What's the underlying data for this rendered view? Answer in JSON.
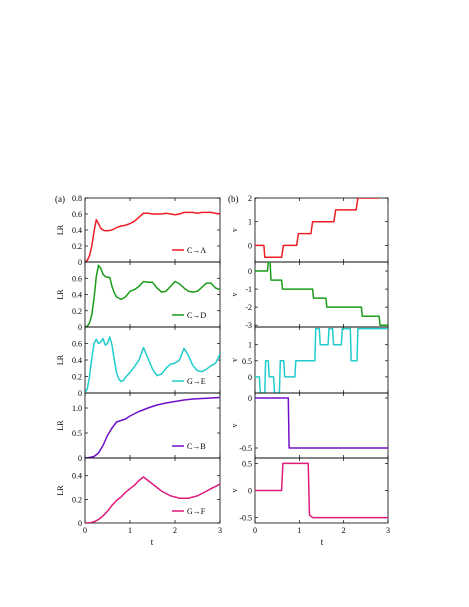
{
  "figure": {
    "panel_labels": [
      "(a)",
      "(b)"
    ],
    "x_label": "t"
  },
  "chart_data": [
    {
      "type": "line",
      "panel": "a",
      "row": 0,
      "ylabel": "LR",
      "ylim": [
        0,
        0.8
      ],
      "yticks": [
        0,
        0.2,
        0.4,
        0.6,
        0.8
      ],
      "ytick_labels": [
        "0",
        "0.2",
        "0.4",
        "0.6",
        "0.8"
      ],
      "xlim": [
        0,
        3
      ],
      "series": [
        {
          "name": "C→A",
          "color": "#ee1c25",
          "x": [
            0,
            0.05,
            0.1,
            0.15,
            0.2,
            0.25,
            0.3,
            0.35,
            0.4,
            0.45,
            0.5,
            0.6,
            0.7,
            0.8,
            0.9,
            1.0,
            1.1,
            1.2,
            1.3,
            1.4,
            1.5,
            1.6,
            1.7,
            1.8,
            1.9,
            2.0,
            2.1,
            2.2,
            2.3,
            2.4,
            2.5,
            2.6,
            2.7,
            2.8,
            2.9,
            3.0
          ],
          "y": [
            0,
            0.02,
            0.08,
            0.2,
            0.38,
            0.53,
            0.48,
            0.42,
            0.4,
            0.39,
            0.39,
            0.4,
            0.43,
            0.45,
            0.46,
            0.48,
            0.51,
            0.56,
            0.61,
            0.61,
            0.6,
            0.6,
            0.6,
            0.61,
            0.6,
            0.59,
            0.6,
            0.62,
            0.62,
            0.62,
            0.61,
            0.62,
            0.62,
            0.62,
            0.61,
            0.6
          ]
        }
      ]
    },
    {
      "type": "line",
      "panel": "a",
      "row": 1,
      "ylabel": "LR",
      "ylim": [
        0,
        0.8
      ],
      "yticks": [
        0,
        0.2,
        0.4,
        0.6
      ],
      "ytick_labels": [
        "0",
        "0.2",
        "0.4",
        "0.6"
      ],
      "xlim": [
        0,
        3
      ],
      "series": [
        {
          "name": "C→D",
          "color": "#1a9c1a",
          "x": [
            0,
            0.05,
            0.1,
            0.15,
            0.2,
            0.25,
            0.3,
            0.35,
            0.4,
            0.45,
            0.5,
            0.55,
            0.6,
            0.65,
            0.7,
            0.8,
            0.9,
            1.0,
            1.1,
            1.2,
            1.3,
            1.4,
            1.5,
            1.6,
            1.7,
            1.8,
            1.9,
            2.0,
            2.1,
            2.2,
            2.3,
            2.4,
            2.5,
            2.6,
            2.7,
            2.8,
            2.9,
            3.0
          ],
          "y": [
            0,
            0.01,
            0.05,
            0.15,
            0.35,
            0.62,
            0.76,
            0.72,
            0.65,
            0.62,
            0.61,
            0.61,
            0.5,
            0.42,
            0.37,
            0.34,
            0.37,
            0.44,
            0.46,
            0.5,
            0.56,
            0.55,
            0.55,
            0.48,
            0.43,
            0.44,
            0.5,
            0.56,
            0.53,
            0.48,
            0.44,
            0.43,
            0.44,
            0.49,
            0.54,
            0.54,
            0.48,
            0.46
          ]
        }
      ]
    },
    {
      "type": "line",
      "panel": "a",
      "row": 2,
      "ylabel": "LR",
      "ylim": [
        0,
        0.8
      ],
      "yticks": [
        0,
        0.2,
        0.4,
        0.6
      ],
      "ytick_labels": [
        "0",
        "0.2",
        "0.4",
        "0.6"
      ],
      "xlim": [
        0,
        3
      ],
      "series": [
        {
          "name": "G→E",
          "color": "#22cccc",
          "x": [
            0,
            0.05,
            0.1,
            0.15,
            0.2,
            0.25,
            0.3,
            0.35,
            0.4,
            0.45,
            0.5,
            0.55,
            0.6,
            0.65,
            0.7,
            0.75,
            0.8,
            0.85,
            0.9,
            1.0,
            1.1,
            1.2,
            1.3,
            1.4,
            1.5,
            1.6,
            1.7,
            1.8,
            1.9,
            2.0,
            2.1,
            2.2,
            2.25,
            2.3,
            2.4,
            2.5,
            2.6,
            2.7,
            2.8,
            2.9,
            3.0
          ],
          "y": [
            0,
            0.05,
            0.2,
            0.42,
            0.6,
            0.65,
            0.6,
            0.62,
            0.66,
            0.58,
            0.6,
            0.68,
            0.58,
            0.4,
            0.25,
            0.17,
            0.14,
            0.15,
            0.19,
            0.25,
            0.32,
            0.4,
            0.55,
            0.42,
            0.29,
            0.21,
            0.23,
            0.3,
            0.35,
            0.36,
            0.4,
            0.54,
            0.5,
            0.45,
            0.33,
            0.27,
            0.26,
            0.29,
            0.33,
            0.36,
            0.47
          ]
        }
      ]
    },
    {
      "type": "line",
      "panel": "a",
      "row": 3,
      "ylabel": "LR",
      "ylim": [
        0,
        1.3
      ],
      "yticks": [
        0,
        0.5,
        1.0
      ],
      "ytick_labels": [
        "0",
        "0.5",
        "1.0"
      ],
      "xlim": [
        0,
        3
      ],
      "series": [
        {
          "name": "C→B",
          "color": "#7010c8",
          "x": [
            0,
            0.1,
            0.2,
            0.3,
            0.4,
            0.5,
            0.6,
            0.7,
            0.8,
            0.9,
            1.0,
            1.2,
            1.4,
            1.6,
            1.8,
            2.0,
            2.2,
            2.4,
            2.6,
            2.8,
            3.0
          ],
          "y": [
            0,
            0.01,
            0.03,
            0.1,
            0.25,
            0.45,
            0.6,
            0.72,
            0.75,
            0.78,
            0.84,
            0.93,
            1.0,
            1.06,
            1.1,
            1.13,
            1.16,
            1.18,
            1.19,
            1.2,
            1.21
          ]
        }
      ]
    },
    {
      "type": "line",
      "panel": "a",
      "row": 4,
      "ylabel": "LR",
      "ylim": [
        0,
        0.55
      ],
      "yticks": [
        0,
        0.2,
        0.4
      ],
      "ytick_labels": [
        "0",
        "0.2",
        "0.4"
      ],
      "xlim": [
        0,
        3
      ],
      "xticks": [
        0,
        1,
        2,
        3
      ],
      "xtick_labels": [
        "0",
        "1",
        "2",
        "3"
      ],
      "series": [
        {
          "name": "G→F",
          "color": "#e0197a",
          "x": [
            0,
            0.1,
            0.2,
            0.3,
            0.4,
            0.5,
            0.6,
            0.7,
            0.8,
            0.9,
            1.0,
            1.1,
            1.2,
            1.3,
            1.4,
            1.5,
            1.6,
            1.7,
            1.8,
            1.9,
            2.0,
            2.1,
            2.2,
            2.3,
            2.4,
            2.5,
            2.6,
            2.7,
            2.8,
            2.9,
            3.0
          ],
          "y": [
            0,
            0.002,
            0.01,
            0.03,
            0.06,
            0.1,
            0.15,
            0.19,
            0.22,
            0.26,
            0.29,
            0.32,
            0.36,
            0.39,
            0.36,
            0.33,
            0.3,
            0.27,
            0.25,
            0.23,
            0.22,
            0.21,
            0.21,
            0.21,
            0.22,
            0.23,
            0.25,
            0.27,
            0.29,
            0.31,
            0.33
          ]
        }
      ]
    },
    {
      "type": "line",
      "panel": "b",
      "row": 0,
      "ylabel": "v",
      "ylim": [
        -0.7,
        2.0
      ],
      "yticks": [
        0,
        1,
        2
      ],
      "ytick_labels": [
        "0",
        "1",
        "2"
      ],
      "xlim": [
        0,
        3
      ],
      "series": [
        {
          "name": "",
          "color": "#ee1c25",
          "x": [
            0,
            0.2,
            0.22,
            0.6,
            0.64,
            0.94,
            0.98,
            1.26,
            1.3,
            1.78,
            1.82,
            2.28,
            2.32,
            2.8,
            2.85,
            3.0
          ],
          "y": [
            0,
            0,
            -0.5,
            -0.5,
            0,
            0,
            0.5,
            0.5,
            1.0,
            1.0,
            1.5,
            1.5,
            2.0,
            2.0,
            2.5,
            2.5
          ]
        }
      ]
    },
    {
      "type": "line",
      "panel": "b",
      "row": 1,
      "ylabel": "v",
      "ylim": [
        -3.1,
        0.5
      ],
      "yticks": [
        0,
        -1,
        -2,
        -3
      ],
      "ytick_labels": [
        "0",
        "-1",
        "-2",
        "-3"
      ],
      "xlim": [
        0,
        3
      ],
      "series": [
        {
          "name": "",
          "color": "#1a9c1a",
          "x": [
            0,
            0.28,
            0.3,
            0.34,
            0.36,
            0.6,
            0.62,
            1.3,
            1.32,
            1.6,
            1.62,
            1.8,
            1.82,
            2.4,
            2.42,
            2.8,
            2.82,
            3.0
          ],
          "y": [
            0,
            0,
            0.5,
            0.5,
            -0.5,
            -0.5,
            -1.0,
            -1.0,
            -1.5,
            -1.5,
            -2.0,
            -2.0,
            -2.0,
            -2.0,
            -2.5,
            -2.5,
            -3.0,
            -3.0
          ]
        }
      ]
    },
    {
      "type": "line",
      "panel": "b",
      "row": 2,
      "ylabel": "v",
      "ylim": [
        -0.5,
        1.55
      ],
      "yticks": [
        0,
        0.5,
        1
      ],
      "ytick_labels": [
        "0",
        "0.5",
        "1"
      ],
      "xlim": [
        0,
        3
      ],
      "series": [
        {
          "name": "",
          "color": "#22cccc",
          "x": [
            0,
            0.1,
            0.12,
            0.22,
            0.24,
            0.3,
            0.32,
            0.42,
            0.44,
            0.55,
            0.57,
            0.65,
            0.67,
            0.9,
            0.92,
            1.35,
            1.37,
            1.45,
            1.47,
            1.65,
            1.67,
            1.75,
            1.77,
            1.95,
            1.97,
            2.15,
            2.17,
            2.3,
            2.32,
            2.45,
            2.47,
            3.0
          ],
          "y": [
            0,
            0,
            -0.5,
            -0.5,
            0.5,
            0.5,
            0,
            0,
            -0.5,
            -0.5,
            0.5,
            0.5,
            0,
            0,
            0.5,
            0.5,
            1.5,
            1.5,
            1.0,
            1.0,
            1.5,
            1.5,
            1.0,
            1.0,
            1.5,
            1.5,
            0.5,
            0.5,
            1.5,
            1.5,
            1.5,
            1.5
          ]
        }
      ]
    },
    {
      "type": "line",
      "panel": "b",
      "row": 3,
      "ylabel": "v",
      "ylim": [
        -0.6,
        0.05
      ],
      "yticks": [
        0,
        -0.5
      ],
      "ytick_labels": [
        "0",
        "-0.5"
      ],
      "xlim": [
        0,
        3
      ],
      "series": [
        {
          "name": "",
          "color": "#7010c8",
          "x": [
            0,
            0.75,
            0.77,
            3.0
          ],
          "y": [
            0,
            0,
            -0.5,
            -0.5
          ]
        }
      ]
    },
    {
      "type": "line",
      "panel": "b",
      "row": 4,
      "ylabel": "v",
      "ylim": [
        -0.6,
        0.6
      ],
      "yticks": [
        0.5,
        0,
        -0.5
      ],
      "ytick_labels": [
        "0.5",
        "0",
        "-0.5"
      ],
      "xlim": [
        0,
        3
      ],
      "xticks": [
        0,
        1,
        2,
        3
      ],
      "xtick_labels": [
        "0",
        "1",
        "2",
        "3"
      ],
      "series": [
        {
          "name": "",
          "color": "#e0197a",
          "x": [
            0,
            0.6,
            0.63,
            1.2,
            1.23,
            1.3,
            3.0
          ],
          "y": [
            0,
            0,
            0.5,
            0.5,
            -0.45,
            -0.5,
            -0.5
          ]
        }
      ]
    }
  ]
}
